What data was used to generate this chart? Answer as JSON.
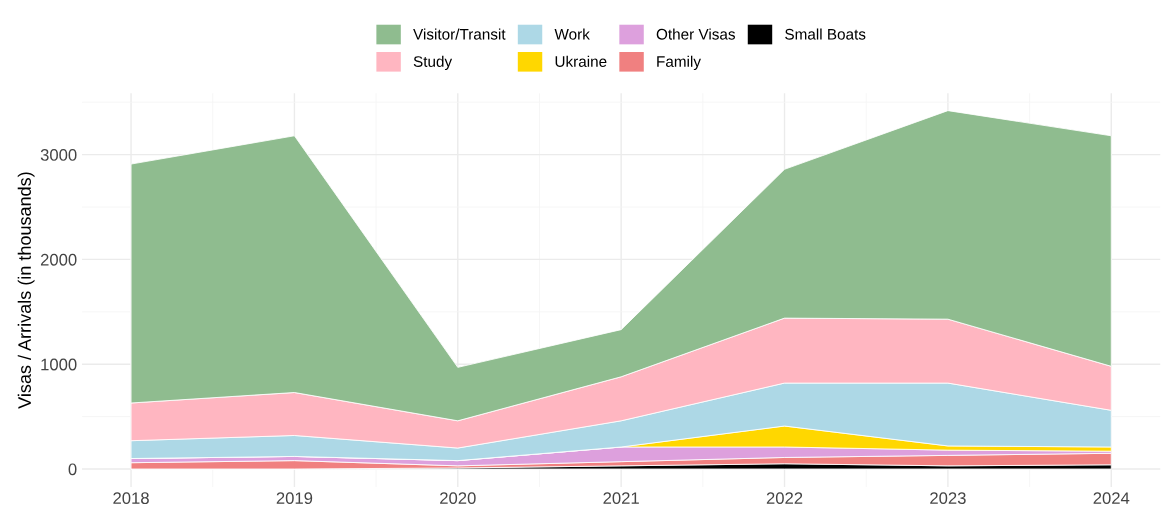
{
  "chart_data": {
    "type": "area",
    "stacked": true,
    "ylabel": "Visas / Arrivals (in thousands)",
    "x": [
      2018,
      2019,
      2020,
      2021,
      2022,
      2023,
      2024
    ],
    "series": [
      {
        "name": "Small Boats",
        "color": "#000000",
        "values": [
          0,
          0,
          10,
          30,
          50,
          30,
          40
        ]
      },
      {
        "name": "Family",
        "color": "#f08080",
        "values": [
          60,
          80,
          20,
          40,
          60,
          100,
          110
        ]
      },
      {
        "name": "Other Visas",
        "color": "#dda0dd",
        "values": [
          40,
          40,
          50,
          140,
          100,
          50,
          20
        ]
      },
      {
        "name": "Ukraine",
        "color": "#ffd700",
        "values": [
          0,
          0,
          0,
          0,
          200,
          40,
          40
        ]
      },
      {
        "name": "Work",
        "color": "#add8e6",
        "values": [
          170,
          200,
          120,
          250,
          410,
          600,
          350
        ]
      },
      {
        "name": "Study",
        "color": "#ffb6c1",
        "values": [
          360,
          410,
          260,
          420,
          620,
          610,
          420
        ]
      },
      {
        "name": "Visitor/Transit",
        "color": "#8fbc8f",
        "values": [
          2280,
          2450,
          510,
          450,
          1420,
          1990,
          2200
        ]
      }
    ],
    "xlim": [
      2017.7,
      2024.3
    ],
    "ylim": [
      -171,
      3586
    ],
    "xticks": [
      2018,
      2019,
      2020,
      2021,
      2022,
      2023,
      2024
    ],
    "yticks": [
      0,
      1000,
      2000,
      3000
    ],
    "grid": true,
    "legend": "top"
  }
}
